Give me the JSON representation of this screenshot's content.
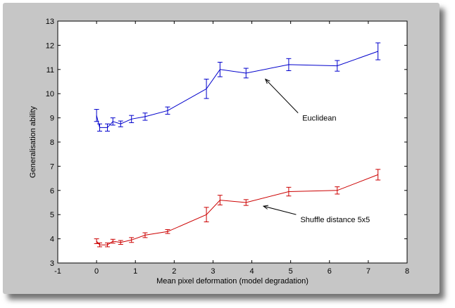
{
  "chart_data": {
    "type": "line",
    "title": "",
    "xlabel": "Mean pixel deformation (model degradation)",
    "ylabel": "Generalisation ability",
    "xlim": [
      -1,
      8
    ],
    "ylim": [
      3,
      13
    ],
    "xticks": [
      -1,
      0,
      1,
      2,
      3,
      4,
      5,
      6,
      7,
      8
    ],
    "yticks": [
      3,
      4,
      5,
      6,
      7,
      8,
      9,
      10,
      11,
      12,
      13
    ],
    "grid": false,
    "background": "#c6c6c6",
    "plot_background": "#ffffff",
    "series": [
      {
        "name": "Euclidean",
        "color": "#0000cc",
        "x": [
          0,
          0.08,
          0.28,
          0.42,
          0.62,
          0.9,
          1.25,
          1.83,
          2.83,
          3.18,
          3.85,
          4.95,
          6.2,
          7.25
        ],
        "y": [
          9.1,
          8.6,
          8.6,
          8.85,
          8.75,
          8.95,
          9.05,
          9.3,
          10.2,
          11.0,
          10.85,
          11.2,
          11.15,
          11.75
        ],
        "err": [
          0.25,
          0.15,
          0.15,
          0.15,
          0.12,
          0.15,
          0.15,
          0.15,
          0.4,
          0.3,
          0.2,
          0.25,
          0.22,
          0.35
        ]
      },
      {
        "name": "Shuffle distance 5x5",
        "color": "#cc0000",
        "x": [
          0,
          0.08,
          0.28,
          0.42,
          0.62,
          0.9,
          1.25,
          1.83,
          2.83,
          3.18,
          3.85,
          4.95,
          6.2,
          7.25
        ],
        "y": [
          3.9,
          3.75,
          3.75,
          3.9,
          3.85,
          3.95,
          4.15,
          4.3,
          5.0,
          5.6,
          5.5,
          5.95,
          6.0,
          6.65
        ],
        "err": [
          0.1,
          0.08,
          0.08,
          0.08,
          0.08,
          0.1,
          0.1,
          0.08,
          0.3,
          0.2,
          0.12,
          0.18,
          0.15,
          0.22
        ]
      }
    ],
    "annotations": [
      {
        "text": "Euclidean",
        "label_x": 5.3,
        "label_y": 9.0,
        "arrow_to_x": 4.35,
        "arrow_to_y": 10.6
      },
      {
        "text": "Shuffle distance 5x5",
        "label_x": 5.25,
        "label_y": 4.8,
        "arrow_to_x": 4.3,
        "arrow_to_y": 5.35
      }
    ]
  }
}
